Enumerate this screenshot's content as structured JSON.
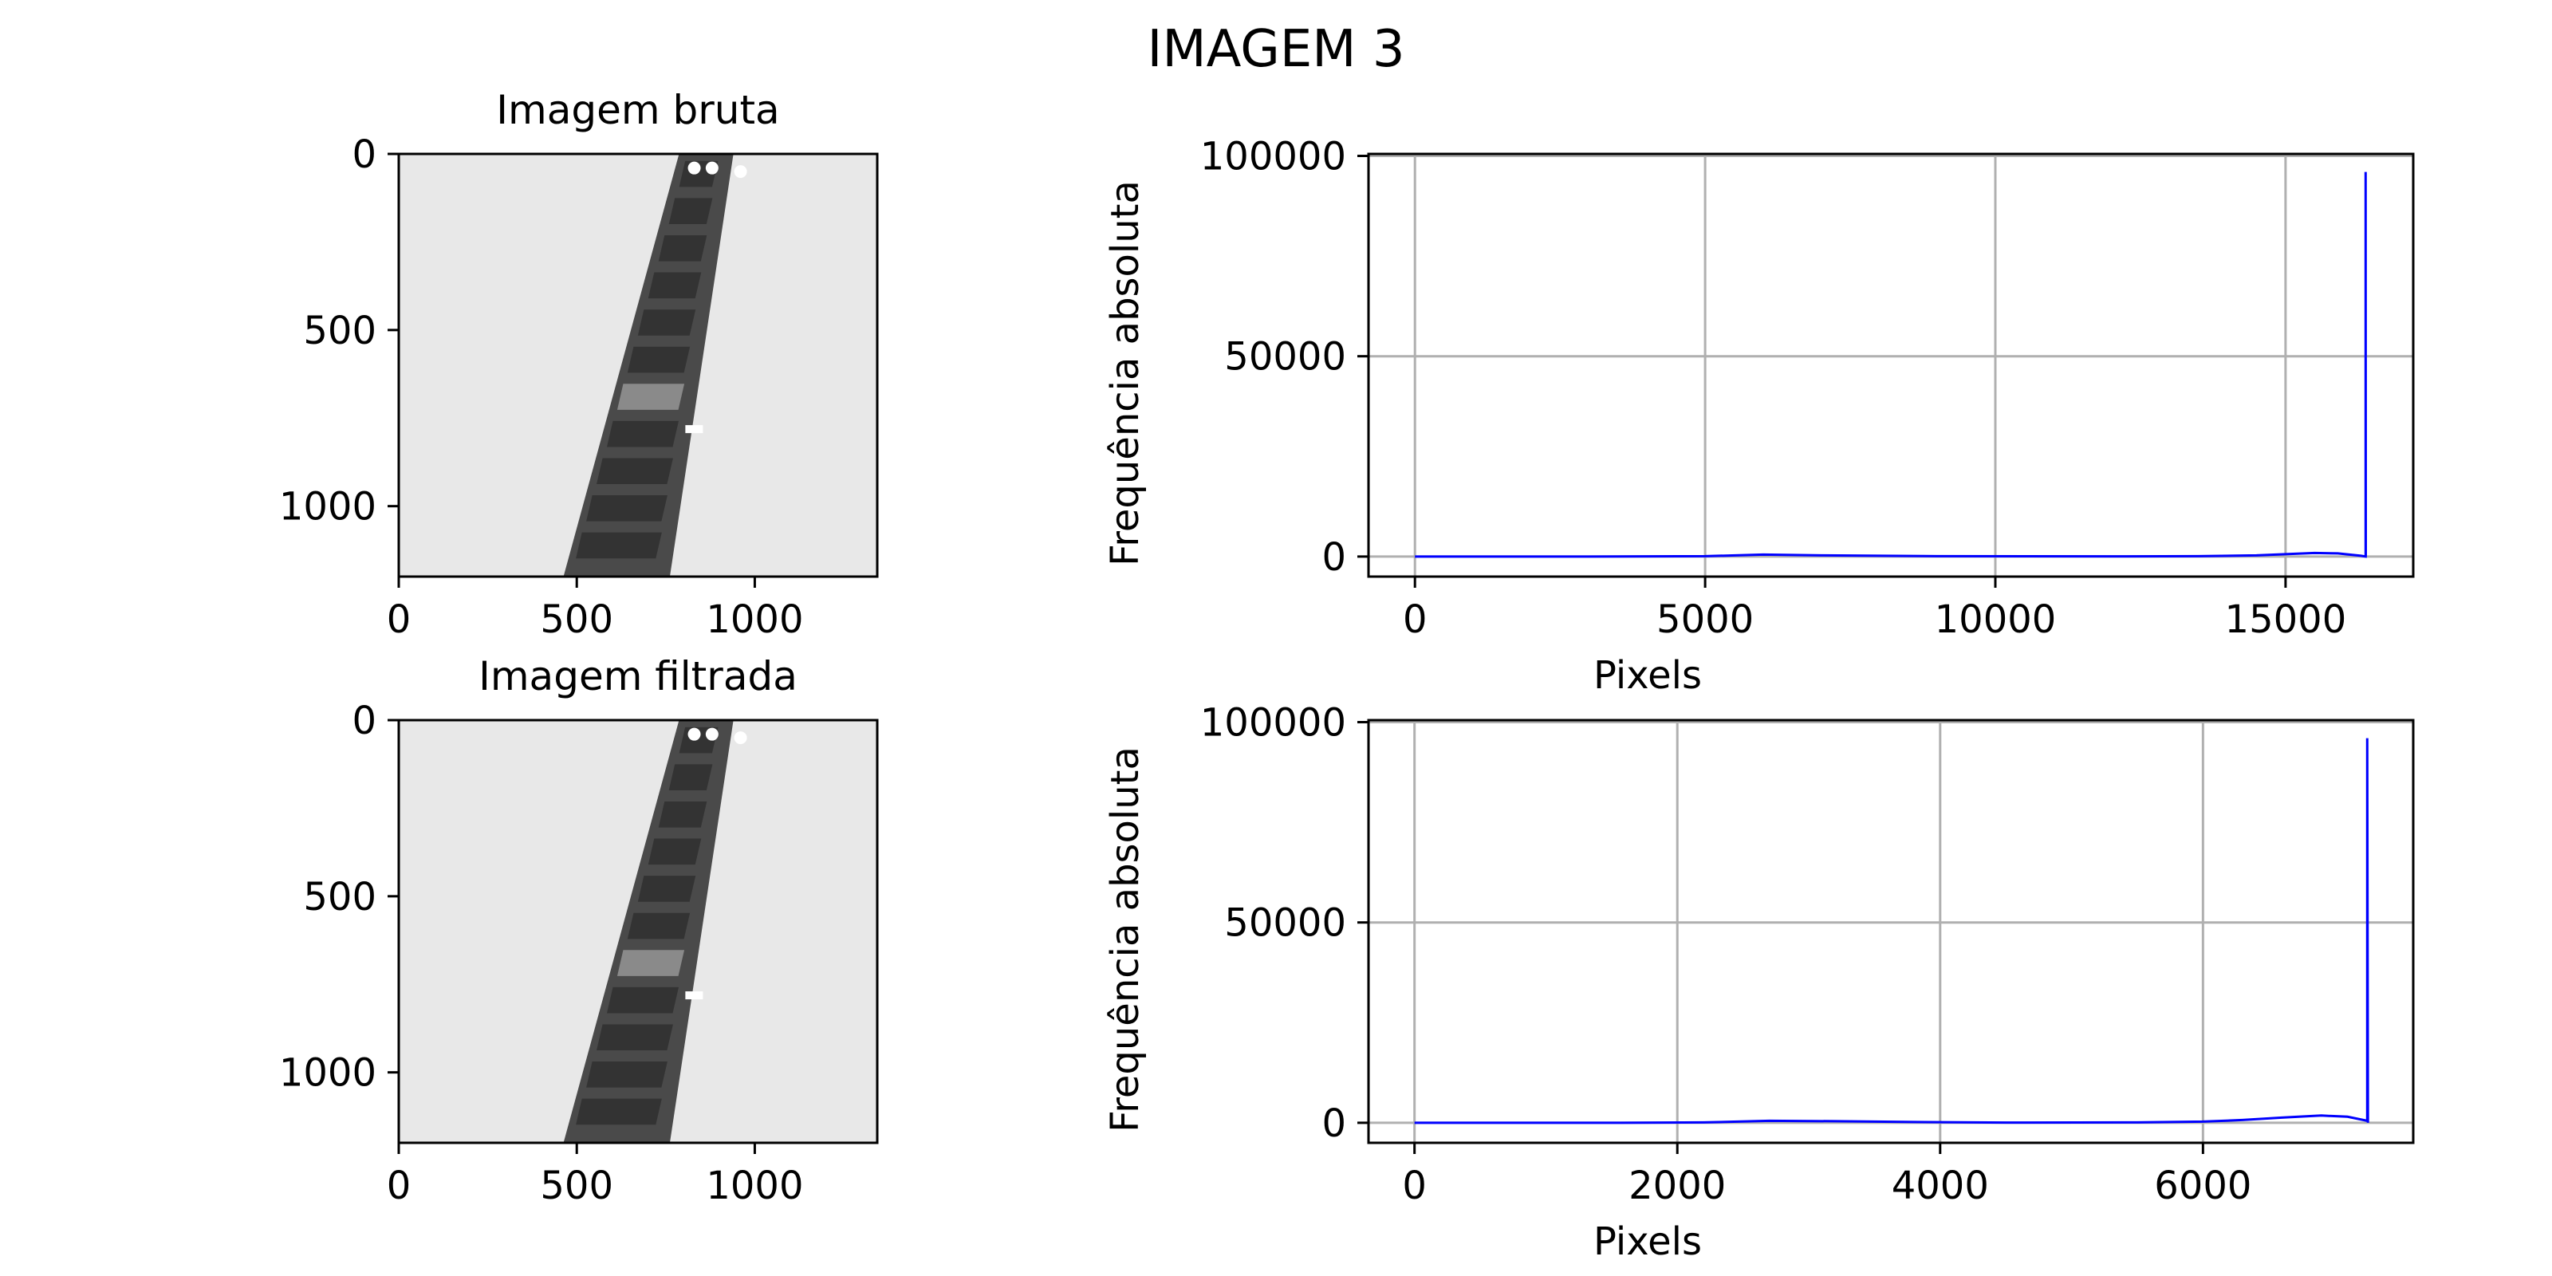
{
  "figure": {
    "title": "IMAGEM 3"
  },
  "colors": {
    "series": "#0000ff",
    "grid": "#b0b0b0",
    "background_image": "#e8e8e8",
    "strip": "#4a4a4a"
  },
  "chart_data": [
    {
      "type": "image",
      "title": "Imagem bruta",
      "xlim": [
        0,
        1344
      ],
      "ylim": [
        1200,
        0
      ],
      "xticks": [
        0,
        500,
        1000
      ],
      "yticks": [
        0,
        500,
        1000
      ]
    },
    {
      "type": "line",
      "title": "",
      "xlabel": "Pixels",
      "ylabel": "Frequência absoluta",
      "xlim": [
        -800,
        17200
      ],
      "ylim": [
        -5000,
        100500
      ],
      "xticks": [
        0,
        5000,
        10000,
        15000
      ],
      "yticks": [
        0,
        50000,
        100000
      ],
      "grid": true,
      "series": [
        {
          "x": [
            0,
            3000,
            5000,
            6000,
            7000,
            9000,
            12000,
            13500,
            14500,
            15000,
            15500,
            15900,
            16300,
            16380,
            16380,
            16383
          ],
          "y": [
            0,
            0,
            100,
            500,
            300,
            100,
            50,
            100,
            300,
            600,
            900,
            800,
            200,
            0,
            96000,
            0
          ]
        }
      ]
    },
    {
      "type": "image",
      "title": "Imagem filtrada",
      "xlim": [
        0,
        1344
      ],
      "ylim": [
        1200,
        0
      ],
      "xticks": [
        0,
        500,
        1000
      ],
      "yticks": [
        0,
        500,
        1000
      ]
    },
    {
      "type": "line",
      "title": "",
      "xlabel": "Pixels",
      "ylabel": "Frequência absoluta",
      "xlim": [
        -350,
        7600
      ],
      "ylim": [
        -5000,
        100500
      ],
      "xticks": [
        0,
        2000,
        4000,
        6000
      ],
      "yticks": [
        0,
        50000,
        100000
      ],
      "grid": true,
      "series": [
        {
          "x": [
            0,
            1500,
            2200,
            2700,
            3200,
            3800,
            4500,
            5500,
            6000,
            6300,
            6600,
            6900,
            7100,
            7250,
            7250,
            7255
          ],
          "y": [
            0,
            0,
            100,
            500,
            400,
            200,
            50,
            100,
            300,
            700,
            1300,
            1800,
            1500,
            500,
            96000,
            0
          ]
        }
      ]
    }
  ]
}
